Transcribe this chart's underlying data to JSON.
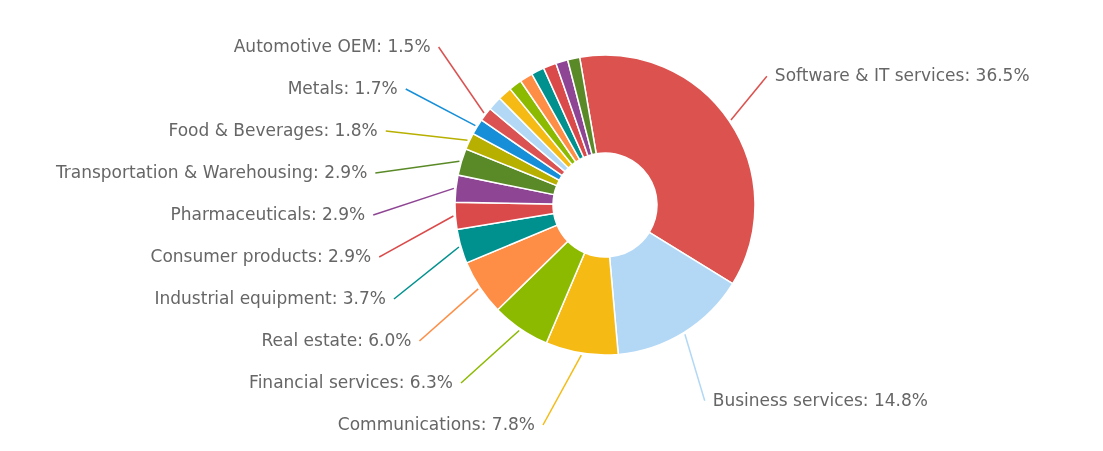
{
  "chart_data": {
    "type": "donut",
    "categories": [
      "Software & IT services",
      "Business services",
      "Communications",
      "Financial services",
      "Real estate",
      "Industrial equipment",
      "Consumer products",
      "Pharmaceuticals",
      "Transportation & Warehousing",
      "Food & Beverages",
      "Metals",
      "Automotive OEM",
      null,
      null,
      null,
      null,
      null,
      null,
      null,
      null
    ],
    "values": [
      36.5,
      14.8,
      7.8,
      6.3,
      6.0,
      3.7,
      2.9,
      2.9,
      2.9,
      1.8,
      1.7,
      1.5,
      1.5,
      1.5,
      1.4,
      1.4,
      1.4,
      1.4,
      1.3,
      1.3
    ],
    "value_labels": [
      "36.5%",
      "14.8%",
      "7.8%",
      "6.3%",
      "6.0%",
      "3.7%",
      "2.9%",
      "2.9%",
      "2.9%",
      "1.8%",
      "1.7%",
      "1.5%",
      null,
      null,
      null,
      null,
      null,
      null,
      null,
      null
    ],
    "colors": [
      "#db524e",
      "#b3d8f6",
      "#f5bb14",
      "#8cba00",
      "#fe8d45",
      "#00918f",
      "#db4a4a",
      "#8e4594",
      "#5a8a27",
      "#b8b000",
      "#168fd8",
      "#db5252",
      "#b3d8f6",
      "#f5bb14",
      "#8cba00",
      "#fe8d45",
      "#00918f",
      "#db4a4a",
      "#8e4594",
      "#5a8a27"
    ]
  }
}
